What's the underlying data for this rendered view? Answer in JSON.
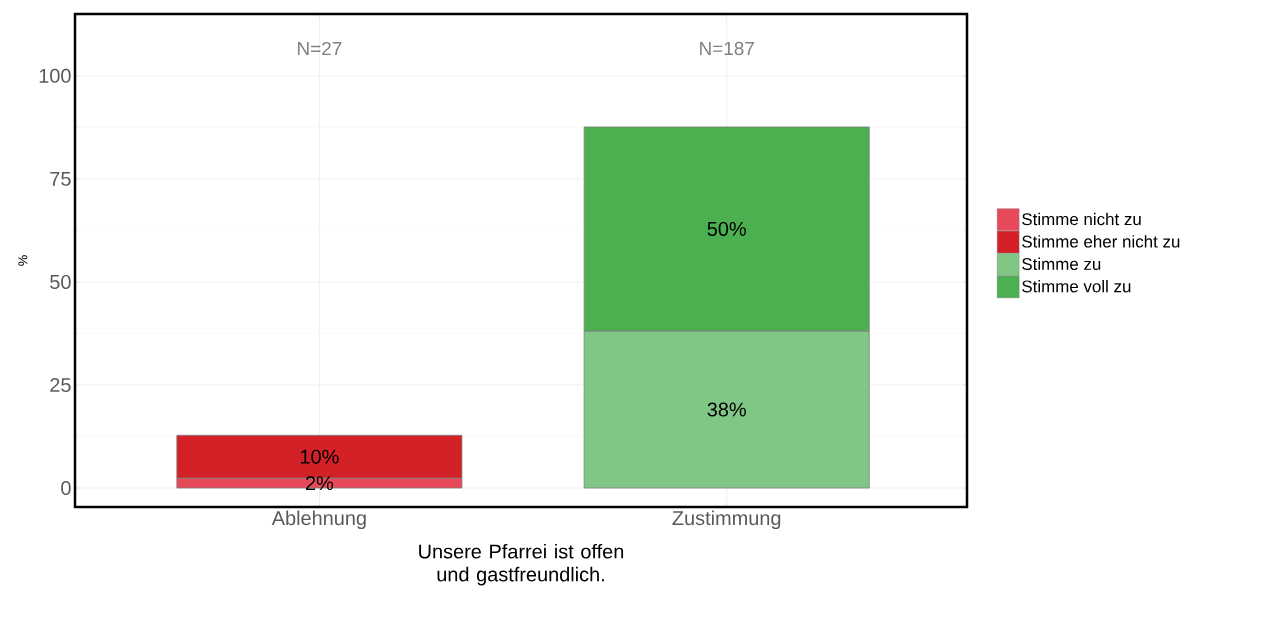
{
  "chart_data": {
    "type": "bar",
    "stacked": true,
    "categories": [
      "Ablehnung",
      "Zustimmung"
    ],
    "series": [
      {
        "name": "Stimme nicht zu",
        "color": "#e8495a",
        "values": [
          2.4,
          null
        ],
        "value_labels": [
          "2%",
          null
        ]
      },
      {
        "name": "Stimme eher nicht zu",
        "color": "#d42027",
        "values": [
          10.4,
          null
        ],
        "value_labels": [
          "10%",
          null
        ]
      },
      {
        "name": "Stimme zu",
        "color": "#80c684",
        "values": [
          null,
          38.1
        ],
        "value_labels": [
          null,
          "38%"
        ]
      },
      {
        "name": "Stimme voll zu",
        "color": "#4caf50",
        "values": [
          null,
          49.5
        ],
        "value_labels": [
          null,
          "50%"
        ]
      }
    ],
    "xlabel": "Unsere Pfarrei ist offen und gastfreundlich.",
    "ylabel": "%",
    "ylim": [
      -4.6,
      115
    ],
    "yticks": [
      0,
      25,
      50,
      75,
      100
    ],
    "grid": true,
    "legend": "right",
    "annotations": [
      "N=27",
      "N=187"
    ]
  }
}
